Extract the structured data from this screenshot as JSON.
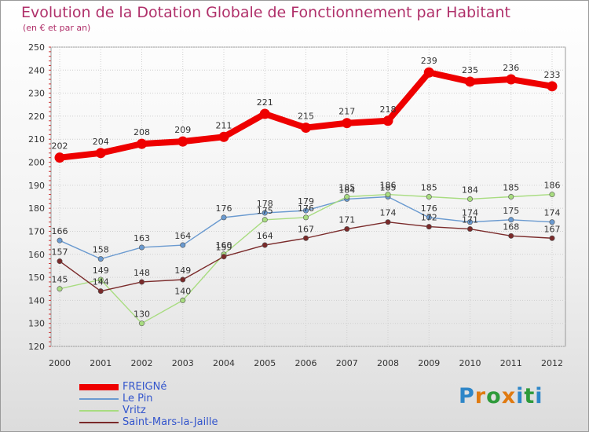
{
  "chart_data": {
    "type": "line",
    "title": "Evolution de la Dotation Globale de Fonctionnement par Habitant",
    "subtitle": "(en € et par an)",
    "xlabel": "",
    "ylabel": "",
    "ylim": [
      120,
      250
    ],
    "yticks": [
      "120",
      "130",
      "140",
      "150",
      "160",
      "170",
      "180",
      "190",
      "200",
      "210",
      "220",
      "230",
      "240",
      "250"
    ],
    "categories": [
      "2000",
      "2001",
      "2002",
      "2003",
      "2004",
      "2005",
      "2006",
      "2007",
      "2008",
      "2009",
      "2010",
      "2011",
      "2012"
    ],
    "grid": true,
    "legend_position": "bottom-left",
    "series": [
      {
        "name": "FREIGNé",
        "color": "#ee0000",
        "values": [
          202,
          204,
          208,
          209,
          211,
          221,
          215,
          217,
          218,
          239,
          235,
          236,
          233
        ],
        "labels": [
          "202",
          "204",
          "208",
          "209",
          "211",
          "221",
          "215",
          "217",
          "218",
          "239",
          "235",
          "236",
          "233"
        ]
      },
      {
        "name": "Le Pin",
        "color": "#6a9ad0",
        "values": [
          166,
          158,
          163,
          164,
          176,
          178,
          179,
          184,
          185,
          176,
          174,
          175,
          174
        ],
        "labels": [
          "166",
          "158",
          "163",
          "164",
          "176",
          "178",
          "179",
          "184",
          "185",
          "176",
          "174",
          "175",
          "174"
        ]
      },
      {
        "name": "Vritz",
        "color": "#a8dc80",
        "values": [
          145,
          149,
          130,
          140,
          160,
          175,
          176,
          185,
          186,
          185,
          184,
          185,
          186
        ],
        "labels": [
          "145",
          "149",
          "130",
          "140",
          "160",
          "175",
          "176",
          "185",
          "186",
          "185",
          "184",
          "185",
          "186"
        ]
      },
      {
        "name": "Saint-Mars-la-Jaille",
        "color": "#7a2a2a",
        "values": [
          157,
          144,
          148,
          149,
          159,
          164,
          167,
          171,
          174,
          172,
          171,
          168,
          167
        ],
        "labels": [
          "157",
          "144",
          "148",
          "149",
          "159",
          "164",
          "167",
          "171",
          "174",
          "172",
          "171",
          "168",
          "167"
        ]
      }
    ]
  },
  "branding": {
    "logo_letters": [
      "P",
      "r",
      "o",
      "x",
      "i",
      "t",
      "i"
    ],
    "logo_colors": [
      "#2e86c8",
      "#e07a10",
      "#2e9a3a",
      "#e07a10",
      "#2e86c8",
      "#2e9a3a",
      "#2e86c8"
    ]
  }
}
